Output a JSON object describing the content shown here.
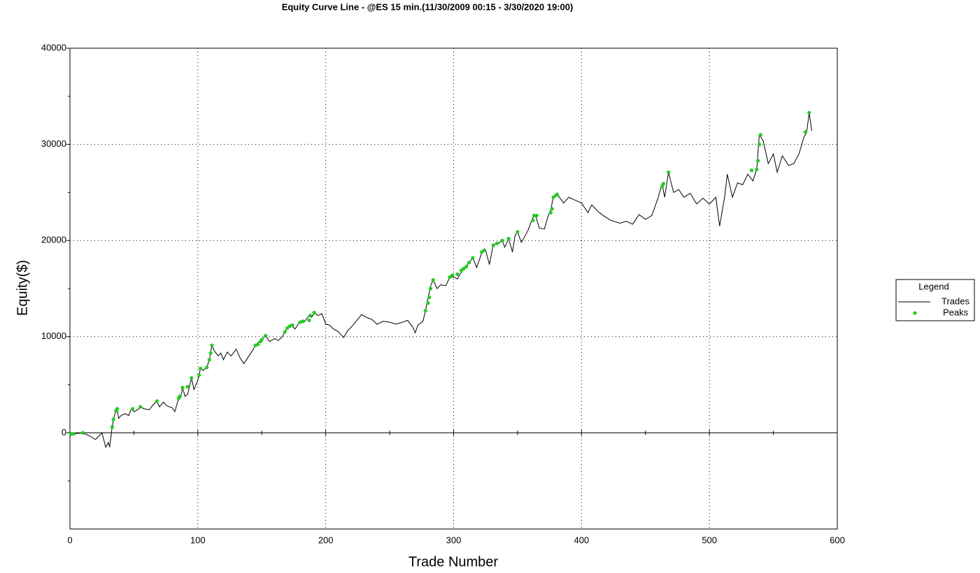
{
  "chart_data": {
    "type": "line",
    "title": "Equity Curve Line - @ES 15 min.(11/30/2009 00:15 - 3/30/2020 19:00)",
    "x_label": "Trade Number",
    "y_label": "Equity($)",
    "xlim": [
      0,
      600
    ],
    "xticks": [
      0,
      100,
      200,
      300,
      400,
      500,
      600
    ],
    "xminorticks": [
      50,
      150,
      250,
      350,
      450,
      550
    ],
    "ylim": [
      -10000,
      40000
    ],
    "yticks": [
      0,
      10000,
      20000,
      30000,
      40000
    ],
    "yminorticks": [
      -5000,
      5000,
      15000,
      25000,
      35000
    ],
    "grid": true,
    "legend_title": "Legend",
    "legend": "right",
    "series": [
      {
        "name": "Trades",
        "type": "line",
        "color": "#000000",
        "x": [
          0,
          3,
          10,
          15,
          20,
          25,
          28,
          30,
          31,
          33,
          34,
          36,
          37,
          38,
          40,
          43,
          46,
          48,
          50,
          53,
          55,
          58,
          62,
          65,
          68,
          70,
          73,
          76,
          80,
          82,
          85,
          87,
          88,
          90,
          92,
          95,
          97,
          100,
          101,
          102,
          104,
          107,
          109,
          111,
          113,
          116,
          118,
          120,
          123,
          126,
          130,
          133,
          136,
          140,
          143,
          145,
          148,
          150,
          153,
          156,
          160,
          163,
          166,
          168,
          170,
          173,
          176,
          180,
          183,
          187,
          189,
          191,
          194,
          197,
          200,
          203,
          206,
          210,
          214,
          217,
          220,
          225,
          228,
          232,
          236,
          240,
          245,
          250,
          255,
          260,
          264,
          268,
          270,
          272,
          276,
          278,
          280,
          282,
          284,
          287,
          290,
          294,
          297,
          300,
          303,
          305,
          308,
          312,
          315,
          318,
          322,
          325,
          328,
          331,
          335,
          338,
          340,
          343,
          346,
          348,
          350,
          353,
          358,
          362,
          364,
          367,
          371,
          374,
          376,
          378,
          381,
          386,
          390,
          395,
          400,
          405,
          408,
          413,
          418,
          423,
          430,
          435,
          440,
          445,
          450,
          455,
          460,
          463,
          465,
          468,
          472,
          476,
          480,
          485,
          490,
          495,
          500,
          505,
          508,
          512,
          514,
          518,
          522,
          526,
          530,
          534,
          537,
          539,
          542,
          546,
          550,
          553,
          557,
          562,
          566,
          570,
          574,
          576,
          578,
          580
        ],
        "values": [
          -300,
          -100,
          0,
          -300,
          -700,
          0,
          -1500,
          -1000,
          -1500,
          600,
          1400,
          2300,
          2500,
          1500,
          1800,
          2000,
          1800,
          2500,
          2200,
          2400,
          2700,
          2500,
          2400,
          2900,
          3300,
          2700,
          3200,
          2800,
          2600,
          2200,
          3600,
          4000,
          4700,
          3800,
          4000,
          5700,
          4500,
          5500,
          6000,
          6700,
          6500,
          6800,
          7600,
          9100,
          8500,
          8000,
          8300,
          7600,
          8400,
          8000,
          8700,
          7800,
          7200,
          8000,
          8600,
          9100,
          9500,
          9700,
          10100,
          9500,
          9800,
          9600,
          10000,
          10500,
          10900,
          11200,
          10800,
          11600,
          11500,
          12200,
          12000,
          12500,
          12200,
          12400,
          11300,
          11200,
          10800,
          10500,
          9900,
          10600,
          11000,
          11800,
          12300,
          12000,
          11800,
          11300,
          11600,
          11500,
          11300,
          11500,
          11700,
          11000,
          10400,
          11200,
          11600,
          12700,
          14000,
          15300,
          15900,
          15000,
          15400,
          15300,
          16200,
          16200,
          16000,
          16500,
          17000,
          17700,
          18200,
          17200,
          18700,
          19000,
          17500,
          19600,
          19700,
          20000,
          19300,
          20200,
          18800,
          20500,
          20900,
          19800,
          21000,
          22400,
          22600,
          21300,
          21200,
          22600,
          23200,
          24600,
          24800,
          23900,
          24500,
          24200,
          23900,
          22900,
          23700,
          23000,
          22500,
          22100,
          21800,
          22000,
          21700,
          22700,
          22200,
          22600,
          24500,
          25900,
          24500,
          27100,
          25000,
          25300,
          24500,
          24900,
          23800,
          24400,
          23800,
          24500,
          21500,
          24600,
          26900,
          24500,
          26000,
          25800,
          26900,
          26200,
          27400,
          31000,
          30400,
          28000,
          29000,
          27100,
          28800,
          27800,
          28000,
          29000,
          30800,
          31200,
          33300,
          31400
        ]
      },
      {
        "name": "Peaks",
        "type": "scatter",
        "color": "#22cc22",
        "x": [
          1,
          3,
          10,
          33,
          34,
          36,
          37,
          49,
          55,
          68,
          85,
          86,
          88,
          92,
          95,
          101,
          102,
          107,
          109,
          110,
          111,
          145,
          147,
          149,
          150,
          153,
          168,
          170,
          172,
          174,
          180,
          182,
          187,
          188,
          191,
          278,
          280,
          281,
          282,
          284,
          297,
          299,
          303,
          306,
          308,
          310,
          312,
          315,
          322,
          324,
          331,
          334,
          338,
          343,
          350,
          362,
          363,
          365,
          376,
          377,
          378,
          380,
          381,
          463,
          464,
          468,
          533,
          537,
          538,
          539,
          540,
          575,
          578
        ],
        "values": [
          -100,
          -100,
          0,
          600,
          1400,
          2300,
          2500,
          2500,
          2700,
          3300,
          3600,
          3800,
          4700,
          4800,
          5700,
          6000,
          6700,
          6800,
          7600,
          8300,
          9100,
          9100,
          9200,
          9500,
          9700,
          10100,
          10500,
          10900,
          11100,
          11200,
          11500,
          11600,
          11700,
          12200,
          12500,
          12700,
          13500,
          14100,
          15000,
          15900,
          16200,
          16400,
          16500,
          16900,
          17100,
          17300,
          17700,
          18200,
          18800,
          19000,
          19500,
          19700,
          20000,
          20200,
          20900,
          22100,
          22600,
          22600,
          22900,
          23300,
          24500,
          24700,
          24800,
          25600,
          25900,
          27100,
          27300,
          27400,
          28300,
          30000,
          31000,
          31300,
          33300
        ]
      }
    ]
  }
}
